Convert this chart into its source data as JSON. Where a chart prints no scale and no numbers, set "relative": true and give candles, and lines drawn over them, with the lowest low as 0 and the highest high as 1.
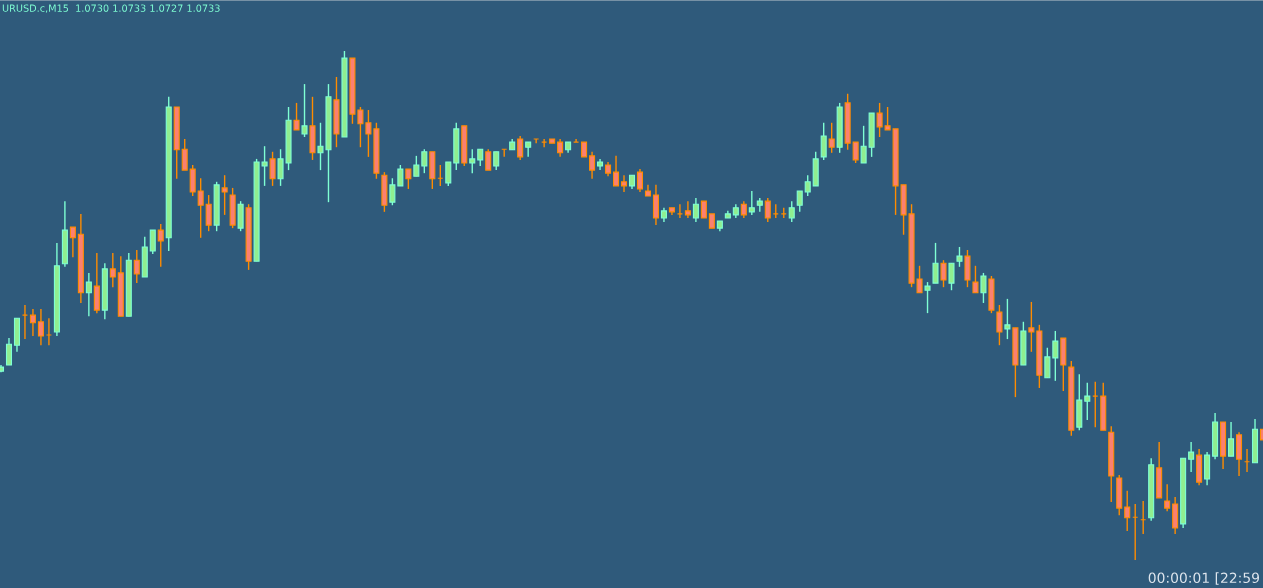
{
  "chart_data": {
    "type": "candlestick",
    "title": "URUSD.c,M15  1.0730 1.0733 1.0727 1.0733",
    "annotations": [
      "00:00:01 [22:59"
    ],
    "relative": true,
    "categories": [
      null,
      null,
      null,
      null,
      null,
      null,
      null,
      null,
      null,
      null,
      null,
      null,
      null,
      null,
      null,
      null,
      null,
      null,
      null,
      null,
      null,
      null,
      null,
      null,
      null,
      null,
      null,
      null,
      null,
      null,
      null,
      null,
      null,
      null,
      null,
      null,
      null,
      null,
      null,
      null,
      null,
      null,
      null,
      null,
      null,
      null,
      null,
      null,
      null,
      null,
      null,
      null,
      null,
      null,
      null,
      null,
      null,
      null,
      null,
      null,
      null,
      null,
      null,
      null,
      null,
      null,
      null,
      null,
      null,
      null,
      null,
      null,
      null,
      null,
      null,
      null,
      null,
      null,
      null,
      null,
      null,
      null,
      null,
      null,
      null,
      null,
      null,
      null,
      null,
      null,
      null,
      null,
      null,
      null,
      null,
      null,
      null,
      null,
      null,
      null,
      null,
      null,
      null,
      null,
      null,
      null,
      null,
      null,
      null,
      null,
      null,
      null,
      null,
      null,
      null,
      null,
      null,
      null,
      null,
      null,
      null,
      null,
      null,
      null,
      null,
      null,
      null,
      null,
      null,
      null,
      null,
      null,
      null,
      null,
      null,
      null,
      null,
      null,
      null,
      null,
      null,
      null,
      null,
      null,
      null,
      null,
      null,
      null,
      null,
      null,
      null,
      null,
      null,
      null,
      null,
      null,
      null,
      null,
      null
    ],
    "ohlc": [
      [
        0.371,
        0.383,
        0.369,
        0.379
      ],
      [
        0.383,
        0.436,
        0.383,
        0.424
      ],
      [
        0.422,
        0.475,
        0.409,
        0.475
      ],
      [
        0.481,
        0.501,
        0.434,
        0.481
      ],
      [
        0.481,
        0.493,
        0.44,
        0.466
      ],
      [
        0.468,
        0.493,
        0.422,
        0.44
      ],
      [
        0.442,
        0.475,
        0.422,
        0.442
      ],
      [
        0.448,
        0.623,
        0.44,
        0.578
      ],
      [
        0.582,
        0.705,
        0.576,
        0.648
      ],
      [
        0.654,
        0.654,
        0.595,
        0.633
      ],
      [
        0.64,
        0.68,
        0.505,
        0.525
      ],
      [
        0.525,
        0.564,
        0.479,
        0.546
      ],
      [
        0.538,
        0.603,
        0.485,
        0.491
      ],
      [
        0.491,
        0.583,
        0.473,
        0.572
      ],
      [
        0.572,
        0.603,
        0.536,
        0.556
      ],
      [
        0.564,
        0.597,
        0.479,
        0.479
      ],
      [
        0.479,
        0.603,
        0.479,
        0.589
      ],
      [
        0.589,
        0.609,
        0.544,
        0.562
      ],
      [
        0.556,
        0.635,
        0.556,
        0.615
      ],
      [
        0.607,
        0.648,
        0.601,
        0.648
      ],
      [
        0.648,
        0.66,
        0.576,
        0.627
      ],
      [
        0.633,
        0.91,
        0.607,
        0.89
      ],
      [
        0.89,
        0.89,
        0.749,
        0.806
      ],
      [
        0.807,
        0.827,
        0.766,
        0.766
      ],
      [
        0.768,
        0.776,
        0.715,
        0.723
      ],
      [
        0.725,
        0.75,
        0.633,
        0.697
      ],
      [
        0.699,
        0.717,
        0.646,
        0.658
      ],
      [
        0.658,
        0.743,
        0.646,
        0.737
      ],
      [
        0.731,
        0.756,
        0.678,
        0.723
      ],
      [
        0.717,
        0.731,
        0.652,
        0.658
      ],
      [
        0.652,
        0.705,
        0.646,
        0.699
      ],
      [
        0.692,
        0.699,
        0.57,
        0.587
      ],
      [
        0.587,
        0.788,
        0.587,
        0.782
      ],
      [
        0.774,
        0.813,
        0.735,
        0.782
      ],
      [
        0.788,
        0.802,
        0.735,
        0.749
      ],
      [
        0.749,
        0.807,
        0.735,
        0.788
      ],
      [
        0.78,
        0.89,
        0.766,
        0.864
      ],
      [
        0.864,
        0.898,
        0.845,
        0.845
      ],
      [
        0.837,
        0.935,
        0.831,
        0.853
      ],
      [
        0.853,
        0.91,
        0.786,
        0.8
      ],
      [
        0.8,
        0.859,
        0.766,
        0.813
      ],
      [
        0.806,
        0.935,
        0.703,
        0.91
      ],
      [
        0.904,
        0.949,
        0.811,
        0.837
      ],
      [
        0.831,
        1,
        0.831,
        0.986
      ],
      [
        0.986,
        0.986,
        0.857,
        0.876
      ],
      [
        0.884,
        0.89,
        0.811,
        0.857
      ],
      [
        0.859,
        0.884,
        0.792,
        0.837
      ],
      [
        0.847,
        0.859,
        0.749,
        0.76
      ],
      [
        0.756,
        0.762,
        0.684,
        0.697
      ],
      [
        0.703,
        0.75,
        0.697,
        0.737
      ],
      [
        0.735,
        0.776,
        0.735,
        0.768
      ],
      [
        0.768,
        0.768,
        0.729,
        0.749
      ],
      [
        0.754,
        0.794,
        0.754,
        0.776
      ],
      [
        0.774,
        0.807,
        0.76,
        0.802
      ],
      [
        0.802,
        0.802,
        0.729,
        0.749
      ],
      [
        0.75,
        0.776,
        0.735,
        0.75
      ],
      [
        0.741,
        0.782,
        0.735,
        0.782
      ],
      [
        0.78,
        0.859,
        0.766,
        0.847
      ],
      [
        0.853,
        0.853,
        0.774,
        0.78
      ],
      [
        0.78,
        0.807,
        0.76,
        0.788
      ],
      [
        0.786,
        0.807,
        0.774,
        0.807
      ],
      [
        0.802,
        0.807,
        0.766,
        0.766
      ],
      [
        0.774,
        0.802,
        0.766,
        0.802
      ],
      [
        0.807,
        0.807,
        0.792,
        0.807
      ],
      [
        0.806,
        0.827,
        0.806,
        0.821
      ],
      [
        0.827,
        0.833,
        0.786,
        0.792
      ],
      [
        0.811,
        0.821,
        0.792,
        0.821
      ],
      [
        0.827,
        0.827,
        0.819,
        0.827
      ],
      [
        0.821,
        0.827,
        0.811,
        0.821
      ],
      [
        0.827,
        0.827,
        0.819,
        0.819
      ],
      [
        0.821,
        0.827,
        0.792,
        0.8
      ],
      [
        0.806,
        0.821,
        0.8,
        0.821
      ],
      [
        0.821,
        0.827,
        0.821,
        0.821
      ],
      [
        0.821,
        0.821,
        0.792,
        0.792
      ],
      [
        0.794,
        0.802,
        0.749,
        0.766
      ],
      [
        0.774,
        0.788,
        0.766,
        0.782
      ],
      [
        0.776,
        0.782,
        0.754,
        0.76
      ],
      [
        0.762,
        0.794,
        0.735,
        0.735
      ],
      [
        0.743,
        0.756,
        0.723,
        0.735
      ],
      [
        0.735,
        0.756,
        0.729,
        0.756
      ],
      [
        0.762,
        0.768,
        0.723,
        0.729
      ],
      [
        0.725,
        0.737,
        0.715,
        0.715
      ],
      [
        0.717,
        0.737,
        0.658,
        0.672
      ],
      [
        0.672,
        0.692,
        0.664,
        0.686
      ],
      [
        0.692,
        0.692,
        0.678,
        0.684
      ],
      [
        0.68,
        0.699,
        0.672,
        0.68
      ],
      [
        0.686,
        0.705,
        0.672,
        0.678
      ],
      [
        0.672,
        0.711,
        0.664,
        0.699
      ],
      [
        0.705,
        0.705,
        0.672,
        0.672
      ],
      [
        0.68,
        0.68,
        0.652,
        0.652
      ],
      [
        0.652,
        0.666,
        0.646,
        0.666
      ],
      [
        0.672,
        0.686,
        0.672,
        0.68
      ],
      [
        0.678,
        0.699,
        0.672,
        0.692
      ],
      [
        0.699,
        0.705,
        0.672,
        0.678
      ],
      [
        0.684,
        0.725,
        0.678,
        0.692
      ],
      [
        0.697,
        0.711,
        0.684,
        0.705
      ],
      [
        0.705,
        0.711,
        0.664,
        0.672
      ],
      [
        0.68,
        0.699,
        0.672,
        0.68
      ],
      [
        0.68,
        0.692,
        0.672,
        0.68
      ],
      [
        0.672,
        0.705,
        0.664,
        0.692
      ],
      [
        0.697,
        0.725,
        0.684,
        0.725
      ],
      [
        0.723,
        0.756,
        0.715,
        0.743
      ],
      [
        0.735,
        0.802,
        0.735,
        0.788
      ],
      [
        0.792,
        0.859,
        0.786,
        0.833
      ],
      [
        0.827,
        0.859,
        0.8,
        0.811
      ],
      [
        0.811,
        0.898,
        0.8,
        0.89
      ],
      [
        0.898,
        0.916,
        0.806,
        0.819
      ],
      [
        0.821,
        0.821,
        0.78,
        0.786
      ],
      [
        0.78,
        0.853,
        0.78,
        0.813
      ],
      [
        0.811,
        0.878,
        0.792,
        0.878
      ],
      [
        0.878,
        0.898,
        0.831,
        0.851
      ],
      [
        0.853,
        0.89,
        0.845,
        0.845
      ],
      [
        0.847,
        0.847,
        0.678,
        0.735
      ],
      [
        0.737,
        0.737,
        0.639,
        0.678
      ],
      [
        0.68,
        0.699,
        0.536,
        0.544
      ],
      [
        0.552,
        0.578,
        0.525,
        0.525
      ],
      [
        0.53,
        0.546,
        0.485,
        0.538
      ],
      [
        0.544,
        0.623,
        0.544,
        0.583
      ],
      [
        0.583,
        0.589,
        0.536,
        0.55
      ],
      [
        0.544,
        0.583,
        0.53,
        0.583
      ],
      [
        0.587,
        0.615,
        0.576,
        0.597
      ],
      [
        0.597,
        0.609,
        0.536,
        0.55
      ],
      [
        0.546,
        0.578,
        0.525,
        0.525
      ],
      [
        0.525,
        0.564,
        0.505,
        0.558
      ],
      [
        0.552,
        0.558,
        0.485,
        0.491
      ],
      [
        0.487,
        0.501,
        0.422,
        0.448
      ],
      [
        0.454,
        0.513,
        0.434,
        0.462
      ],
      [
        0.456,
        0.456,
        0.32,
        0.383
      ],
      [
        0.383,
        0.468,
        0.383,
        0.45
      ],
      [
        0.456,
        0.507,
        0.409,
        0.448
      ],
      [
        0.45,
        0.462,
        0.338,
        0.363
      ],
      [
        0.358,
        0.417,
        0.358,
        0.399
      ],
      [
        0.397,
        0.45,
        0.352,
        0.43
      ],
      [
        0.436,
        0.436,
        0.332,
        0.383
      ],
      [
        0.379,
        0.391,
        0.244,
        0.255
      ],
      [
        0.261,
        0.365,
        0.255,
        0.314
      ],
      [
        0.312,
        0.348,
        0.275,
        0.322
      ],
      [
        0.322,
        0.35,
        0.261,
        0.322
      ],
      [
        0.322,
        0.348,
        0.255,
        0.255
      ],
      [
        0.251,
        0.263,
        0.114,
        0.165
      ],
      [
        0.161,
        0.167,
        0.088,
        0.102
      ],
      [
        0.104,
        0.136,
        0.057,
        0.083
      ],
      [
        0.084,
        0.11,
        0,
        0.084
      ],
      [
        0.079,
        0.116,
        0.051,
        0.079
      ],
      [
        0.083,
        0.2,
        0.077,
        0.187
      ],
      [
        0.181,
        0.232,
        0.122,
        0.122
      ],
      [
        0.116,
        0.149,
        0.096,
        0.102
      ],
      [
        0.11,
        0.124,
        0.051,
        0.063
      ],
      [
        0.071,
        0.2,
        0.063,
        0.2
      ],
      [
        0.198,
        0.232,
        0.173,
        0.212
      ],
      [
        0.206,
        0.218,
        0.147,
        0.153
      ],
      [
        0.159,
        0.212,
        0.147,
        0.206
      ],
      [
        0.204,
        0.289,
        0.198,
        0.271
      ],
      [
        0.271,
        0.271,
        0.179,
        0.204
      ],
      [
        0.204,
        0.271,
        0.204,
        0.238
      ],
      [
        0.246,
        0.251,
        0.165,
        0.198
      ],
      [
        0.193,
        0.218,
        0.173,
        0.193
      ],
      [
        0.191,
        0.277,
        0.191,
        0.257
      ],
      [
        0.257,
        0.257,
        0.236,
        0.236
      ]
    ]
  }
}
